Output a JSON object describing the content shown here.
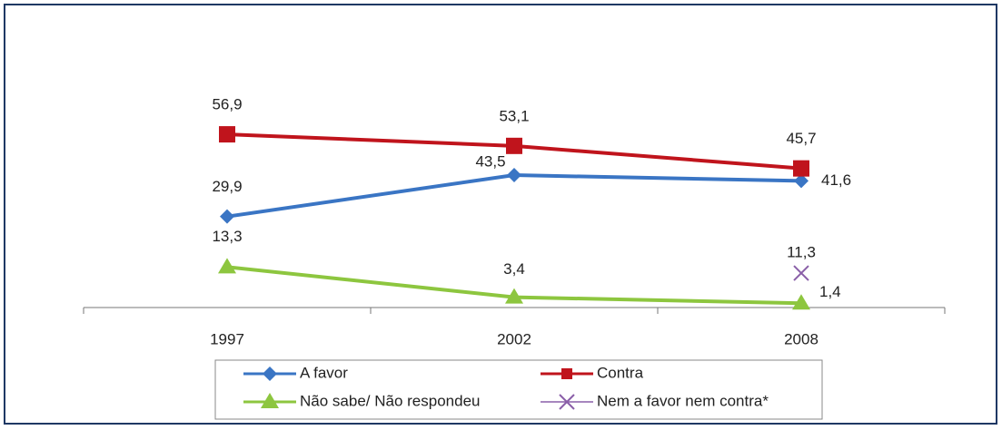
{
  "chart_data": {
    "type": "line",
    "categories": [
      "1997",
      "2002",
      "2008"
    ],
    "ylim": [
      0,
      90
    ],
    "series": [
      {
        "name": "A favor",
        "color": "#3a75c4",
        "marker": "diamond",
        "values": [
          29.9,
          43.5,
          41.6
        ],
        "value_labels": [
          "29,9",
          "43,5",
          "41,6"
        ]
      },
      {
        "name": "Contra",
        "color": "#c0141c",
        "marker": "square",
        "values": [
          56.9,
          53.1,
          45.7
        ],
        "value_labels": [
          "56,9",
          "53,1",
          "45,7"
        ]
      },
      {
        "name": "Não sabe/ Não respondeu",
        "color": "#8dc63f",
        "marker": "triangle",
        "values": [
          13.3,
          3.4,
          1.4
        ],
        "value_labels": [
          "13,3",
          "3,4",
          "1,4"
        ]
      },
      {
        "name": "Nem a favor nem contra*",
        "color": "#8a5fa8",
        "marker": "x",
        "values": [
          null,
          null,
          11.3
        ],
        "value_labels": [
          null,
          null,
          "11,3"
        ]
      }
    ],
    "legend": "bottom"
  }
}
